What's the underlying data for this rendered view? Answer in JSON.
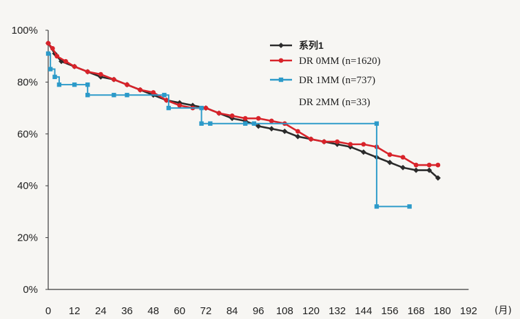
{
  "chart_data": {
    "type": "line",
    "title": "",
    "xlabel": "(月)",
    "ylabel": "",
    "xlim": [
      0,
      192
    ],
    "ylim": [
      0,
      100
    ],
    "x_ticks": [
      "0",
      "12",
      "24",
      "36",
      "48",
      "60",
      "72",
      "84",
      "96",
      "108",
      "120",
      "132",
      "144",
      "156",
      "168",
      "180",
      "192"
    ],
    "y_ticks": [
      "0%",
      "20%",
      "40%",
      "60%",
      "80%",
      "100%"
    ],
    "grid": false,
    "legend_position": "top-right",
    "series": [
      {
        "name": "系列1",
        "color": "#2b2b2b",
        "marker": "diamond",
        "points": [
          [
            0,
            95
          ],
          [
            3,
            91
          ],
          [
            6,
            88
          ],
          [
            12,
            86
          ],
          [
            18,
            84
          ],
          [
            24,
            82
          ],
          [
            30,
            81
          ],
          [
            36,
            79
          ],
          [
            42,
            77
          ],
          [
            48,
            75
          ],
          [
            54,
            73
          ],
          [
            60,
            72
          ],
          [
            66,
            71
          ],
          [
            72,
            70
          ],
          [
            78,
            68
          ],
          [
            84,
            66
          ],
          [
            90,
            65
          ],
          [
            96,
            63
          ],
          [
            102,
            62
          ],
          [
            108,
            61
          ],
          [
            114,
            59
          ],
          [
            120,
            58
          ],
          [
            126,
            57
          ],
          [
            132,
            56
          ],
          [
            138,
            55
          ],
          [
            144,
            53
          ],
          [
            150,
            51
          ],
          [
            156,
            49
          ],
          [
            162,
            47
          ],
          [
            168,
            46
          ],
          [
            174,
            46
          ],
          [
            178,
            43
          ]
        ]
      },
      {
        "name": "DR 0MM (n=1620)",
        "color": "#d8232a",
        "marker": "circle",
        "points": [
          [
            0,
            95
          ],
          [
            2,
            93
          ],
          [
            4,
            90
          ],
          [
            8,
            88
          ],
          [
            12,
            86
          ],
          [
            18,
            84
          ],
          [
            24,
            83
          ],
          [
            30,
            81
          ],
          [
            36,
            79
          ],
          [
            42,
            77
          ],
          [
            48,
            76
          ],
          [
            54,
            73
          ],
          [
            60,
            71
          ],
          [
            66,
            70
          ],
          [
            72,
            70
          ],
          [
            78,
            68
          ],
          [
            84,
            67
          ],
          [
            90,
            66
          ],
          [
            96,
            66
          ],
          [
            102,
            65
          ],
          [
            108,
            64
          ],
          [
            114,
            61
          ],
          [
            120,
            58
          ],
          [
            126,
            57
          ],
          [
            132,
            57
          ],
          [
            138,
            56
          ],
          [
            144,
            56
          ],
          [
            150,
            55
          ],
          [
            156,
            52
          ],
          [
            162,
            51
          ],
          [
            168,
            48
          ],
          [
            174,
            48
          ],
          [
            178,
            48
          ]
        ]
      },
      {
        "name": "DR 1MM (n=737)",
        "color": "#2c9ac9",
        "marker": "square",
        "step": true,
        "points": [
          [
            0,
            91
          ],
          [
            1,
            85
          ],
          [
            3,
            82
          ],
          [
            5,
            79
          ],
          [
            12,
            79
          ],
          [
            18,
            79
          ],
          [
            18,
            75
          ],
          [
            30,
            75
          ],
          [
            36,
            75
          ],
          [
            53,
            75
          ],
          [
            55,
            70
          ],
          [
            70,
            70
          ],
          [
            70,
            64
          ],
          [
            74,
            64
          ],
          [
            90,
            64
          ],
          [
            94,
            64
          ],
          [
            150,
            64
          ],
          [
            150,
            32
          ],
          [
            165,
            32
          ]
        ]
      },
      {
        "name": "DR 2MM (n=33)",
        "color": "#2b2b2b",
        "marker": "none",
        "points": []
      }
    ]
  }
}
